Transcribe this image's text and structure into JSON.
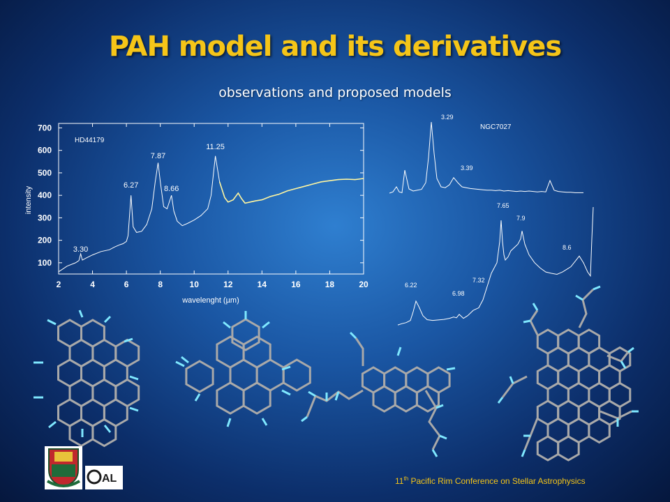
{
  "title": "PAH model and its derivatives",
  "subtitle": "observations and proposed models",
  "footer": {
    "sup_text": "th",
    "prefix": "11",
    "suffix": " Pacific Rim Conference on Stellar Astrophysics"
  },
  "chart_data": [
    {
      "type": "line",
      "title": "",
      "legend_label": "HD44179",
      "xlabel": "wavelenght (µm)",
      "ylabel": "intensity",
      "xlim": [
        2,
        20
      ],
      "ylim": [
        50,
        720
      ],
      "x_ticks": [
        2,
        4,
        6,
        8,
        10,
        12,
        14,
        16,
        18,
        20
      ],
      "y_ticks": [
        100,
        200,
        300,
        400,
        500,
        600,
        700
      ],
      "annotations": [
        {
          "label": "3.30",
          "x": 3.3,
          "y": 125
        },
        {
          "label": "6.27",
          "x": 6.27,
          "y": 410
        },
        {
          "label": "7.87",
          "x": 7.87,
          "y": 540
        },
        {
          "label": "8.66",
          "x": 8.66,
          "y": 395
        },
        {
          "label": "11.25",
          "x": 11.25,
          "y": 580
        }
      ],
      "series": [
        {
          "x": [
            2.0,
            2.5,
            3.0,
            3.2,
            3.3,
            3.4,
            3.6,
            4.0,
            4.5,
            5.0,
            5.3,
            5.6,
            5.8,
            6.0,
            6.1,
            6.27,
            6.4,
            6.6,
            6.9,
            7.2,
            7.5,
            7.7,
            7.87,
            8.0,
            8.2,
            8.4,
            8.66,
            8.8,
            9.0,
            9.3,
            9.6,
            10.0,
            10.4,
            10.8,
            11.0,
            11.25,
            11.5,
            11.8,
            12.0,
            12.3,
            12.6,
            12.8,
            13.0,
            13.3,
            13.6,
            14.0,
            14.5,
            15.0,
            15.5,
            16.0,
            16.5,
            17.0,
            17.5,
            18.0,
            18.5,
            19.0,
            19.5,
            20.0
          ],
          "y": [
            60,
            85,
            100,
            110,
            140,
            112,
            120,
            135,
            150,
            158,
            170,
            180,
            185,
            195,
            220,
            400,
            260,
            235,
            240,
            270,
            340,
            460,
            545,
            460,
            350,
            340,
            400,
            330,
            285,
            265,
            275,
            290,
            310,
            340,
            400,
            575,
            460,
            390,
            370,
            380,
            410,
            385,
            365,
            370,
            375,
            380,
            395,
            405,
            420,
            430,
            440,
            450,
            460,
            465,
            470,
            472,
            470,
            475
          ]
        }
      ]
    },
    {
      "type": "line",
      "title": "",
      "legend_label": "NGC7027",
      "xlabel": "",
      "ylabel": "",
      "annotations": [
        "3.29",
        "3.39"
      ],
      "series": [
        {
          "x": [
            0,
            5,
            10,
            14,
            18,
            22,
            28,
            34,
            40,
            46,
            52,
            56,
            60,
            64,
            68,
            74,
            80,
            86,
            92,
            98,
            104,
            110,
            116,
            122,
            128,
            134,
            140,
            146,
            152,
            158,
            164,
            170,
            176,
            182,
            188,
            194,
            200,
            206,
            212,
            218,
            224,
            230,
            236,
            242,
            248,
            254,
            260,
            266,
            272,
            278
          ],
          "y": [
            5,
            8,
            20,
            8,
            6,
            60,
            15,
            10,
            12,
            14,
            30,
            90,
            175,
            100,
            40,
            20,
            18,
            25,
            42,
            30,
            20,
            18,
            16,
            15,
            14,
            13,
            12,
            12,
            11,
            12,
            10,
            11,
            10,
            9,
            10,
            9,
            10,
            9,
            8,
            9,
            8,
            35,
            12,
            9,
            8,
            7,
            7,
            6,
            6,
            6
          ]
        }
      ]
    },
    {
      "type": "line",
      "title": "",
      "xlabel": "",
      "ylabel": "",
      "annotations": [
        "6.22",
        "6.98",
        "7.32",
        "7.65",
        "7.9",
        "8.6"
      ],
      "series": [
        {
          "x": [
            0,
            6,
            12,
            18,
            22,
            26,
            30,
            36,
            42,
            50,
            58,
            66,
            74,
            80,
            84,
            88,
            94,
            100,
            108,
            116,
            122,
            128,
            134,
            138,
            142,
            146,
            148,
            150,
            152,
            154,
            158,
            162,
            168,
            172,
            176,
            178,
            182,
            188,
            196,
            204,
            212,
            220,
            228,
            236,
            242,
            248,
            254,
            260,
            266,
            272,
            276,
            278,
            280
          ],
          "y": [
            5,
            10,
            14,
            22,
            55,
            95,
            75,
            40,
            25,
            22,
            24,
            26,
            30,
            35,
            32,
            45,
            30,
            40,
            60,
            70,
            100,
            150,
            200,
            220,
            240,
            320,
            400,
            320,
            270,
            250,
            262,
            285,
            300,
            310,
            330,
            360,
            310,
            270,
            240,
            220,
            205,
            200,
            196,
            205,
            215,
            225,
            245,
            265,
            240,
            205,
            190,
            330,
            450
          ]
        }
      ]
    }
  ]
}
